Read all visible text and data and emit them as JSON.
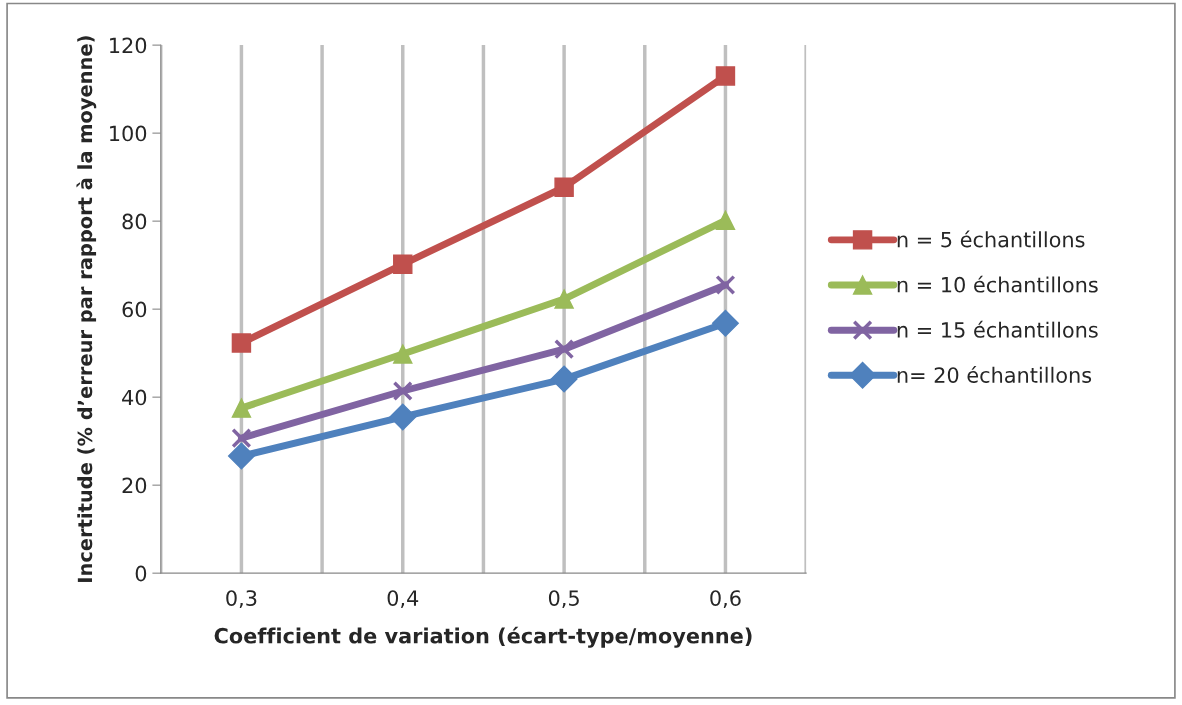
{
  "chart_data": {
    "type": "line",
    "xlabel": "Coefficient de variation (écart-type/moyenne)",
    "ylabel": "Incertitude (% d’erreur par rapport à la moyenne)",
    "categories": [
      "0,3",
      "0,4",
      "0,5",
      "0,6"
    ],
    "ylim": [
      0,
      120
    ],
    "yticks": [
      0,
      20,
      40,
      60,
      80,
      100,
      120
    ],
    "grid": "x",
    "legend": "right",
    "series": [
      {
        "name": "n = 5 échantillons",
        "color": "#c0504d",
        "marker": "square",
        "values": [
          52.3,
          70.2,
          87.7,
          113
        ]
      },
      {
        "name": "n = 10 échantillons",
        "color": "#9bbb59",
        "marker": "triangle",
        "values": [
          37.5,
          49.8,
          62.3,
          80.2
        ]
      },
      {
        "name": "n = 15 échantillons",
        "color": "#8064a2",
        "marker": "cross",
        "values": [
          30.7,
          41.4,
          50.9,
          65.5
        ]
      },
      {
        "name": "n= 20 échantillons",
        "color": "#4f81bd",
        "marker": "diamond",
        "values": [
          26.6,
          35.5,
          44.1,
          56.8
        ]
      }
    ]
  }
}
